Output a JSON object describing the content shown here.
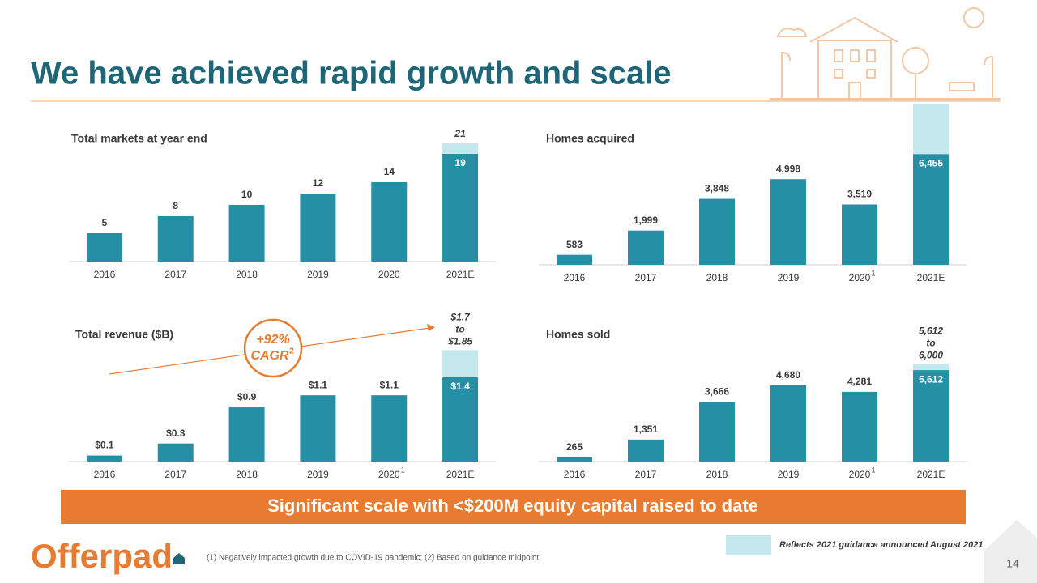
{
  "title": "We have achieved rapid growth and scale",
  "banner": "Significant scale with <$200M equity capital raised to date",
  "legend_label": "Reflects 2021 guidance announced August 2021",
  "footnote": "(1) Negatively impacted growth due to COVID-19 pandemic; (2) Based on guidance midpoint",
  "logo": "Offerpad",
  "page_number": "14",
  "chart_data": [
    {
      "type": "bar",
      "title": "Total markets at year end",
      "categories": [
        "2016",
        "2017",
        "2018",
        "2019",
        "2020",
        "2021E"
      ],
      "values": [
        5,
        8,
        10,
        12,
        14,
        19
      ],
      "guidance_range": [
        21
      ],
      "guidance_labels": [
        "21"
      ],
      "ylim": [
        0,
        24
      ],
      "color": "#2590a5",
      "guidance_color": "#c5e8ef"
    },
    {
      "type": "bar",
      "title": "Homes acquired",
      "categories": [
        "2016",
        "2017",
        "2018",
        "2019",
        "2020",
        "2021E"
      ],
      "values": [
        583,
        1999,
        3848,
        4998,
        3519,
        6455
      ],
      "value_labels": [
        "583",
        "1,999",
        "3,848",
        "4,998",
        "3,519",
        "6,455"
      ],
      "category_notes": [
        null,
        null,
        null,
        null,
        "1",
        null
      ],
      "guidance_range": [
        9400
      ],
      "ylim": [
        0,
        9400
      ],
      "color": "#2590a5",
      "guidance_color": "#c5e8ef"
    },
    {
      "type": "bar",
      "title": "Total revenue ($B)",
      "categories": [
        "2016",
        "2017",
        "2018",
        "2019",
        "2020",
        "2021E"
      ],
      "values": [
        0.1,
        0.3,
        0.9,
        1.1,
        1.1,
        1.4
      ],
      "value_labels": [
        "$0.1",
        "$0.3",
        "$0.9",
        "$1.1",
        "$1.1",
        "$1.4"
      ],
      "category_notes": [
        null,
        null,
        null,
        null,
        "1",
        null
      ],
      "guidance_range": [
        1.7,
        1.85
      ],
      "guidance_labels": [
        "$1.7",
        "to",
        "$1.85"
      ],
      "annotation": {
        "value": "+92%",
        "text": "CAGR",
        "note": "2"
      },
      "ylim": [
        0,
        2.5
      ],
      "color": "#2590a5",
      "guidance_color": "#c5e8ef"
    },
    {
      "type": "bar",
      "title": "Homes sold",
      "categories": [
        "2016",
        "2017",
        "2018",
        "2019",
        "2020",
        "2021E"
      ],
      "values": [
        265,
        1351,
        3666,
        4680,
        4281,
        5612
      ],
      "value_labels": [
        "265",
        "1,351",
        "3,666",
        "4,680",
        "4,281",
        "5,612"
      ],
      "category_notes": [
        null,
        null,
        null,
        null,
        "1",
        null
      ],
      "guidance_range": [
        5612,
        6000
      ],
      "guidance_labels": [
        "5,612",
        "to",
        "6,000"
      ],
      "ylim": [
        0,
        9000
      ],
      "color": "#2590a5",
      "guidance_color": "#c5e8ef"
    }
  ]
}
